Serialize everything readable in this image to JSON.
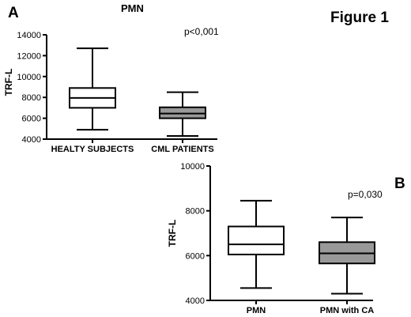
{
  "figure_title": "Figure 1",
  "chart_data": [
    {
      "type": "box",
      "panel_label": "A",
      "title": "PMN",
      "annotation": "p<0,001",
      "xlabel": "",
      "ylabel": "TRF-L",
      "ylim": [
        4000,
        14000
      ],
      "yticks": [
        4000,
        6000,
        8000,
        10000,
        12000,
        14000
      ],
      "categories": [
        "HEALTY SUBJECTS",
        "CML PATIENTS"
      ],
      "boxes": [
        {
          "min": 4900,
          "q1": 7000,
          "median": 7950,
          "q3": 8900,
          "max": 12700,
          "color": "#ffffff"
        },
        {
          "min": 4300,
          "q1": 6000,
          "median": 6450,
          "q3": 7050,
          "max": 8500,
          "color": "#999999"
        }
      ]
    },
    {
      "type": "box",
      "panel_label": "B",
      "title": "",
      "annotation": "p=0,030",
      "xlabel": "",
      "ylabel": "TRF-L",
      "ylim": [
        4000,
        10000
      ],
      "yticks": [
        4000,
        6000,
        8000,
        10000
      ],
      "categories": [
        "PMN",
        "PMN with CA"
      ],
      "boxes": [
        {
          "min": 4550,
          "q1": 6050,
          "median": 6500,
          "q3": 7300,
          "max": 8450,
          "color": "#ffffff"
        },
        {
          "min": 4300,
          "q1": 5650,
          "median": 6100,
          "q3": 6600,
          "max": 7700,
          "color": "#999999"
        }
      ]
    }
  ]
}
